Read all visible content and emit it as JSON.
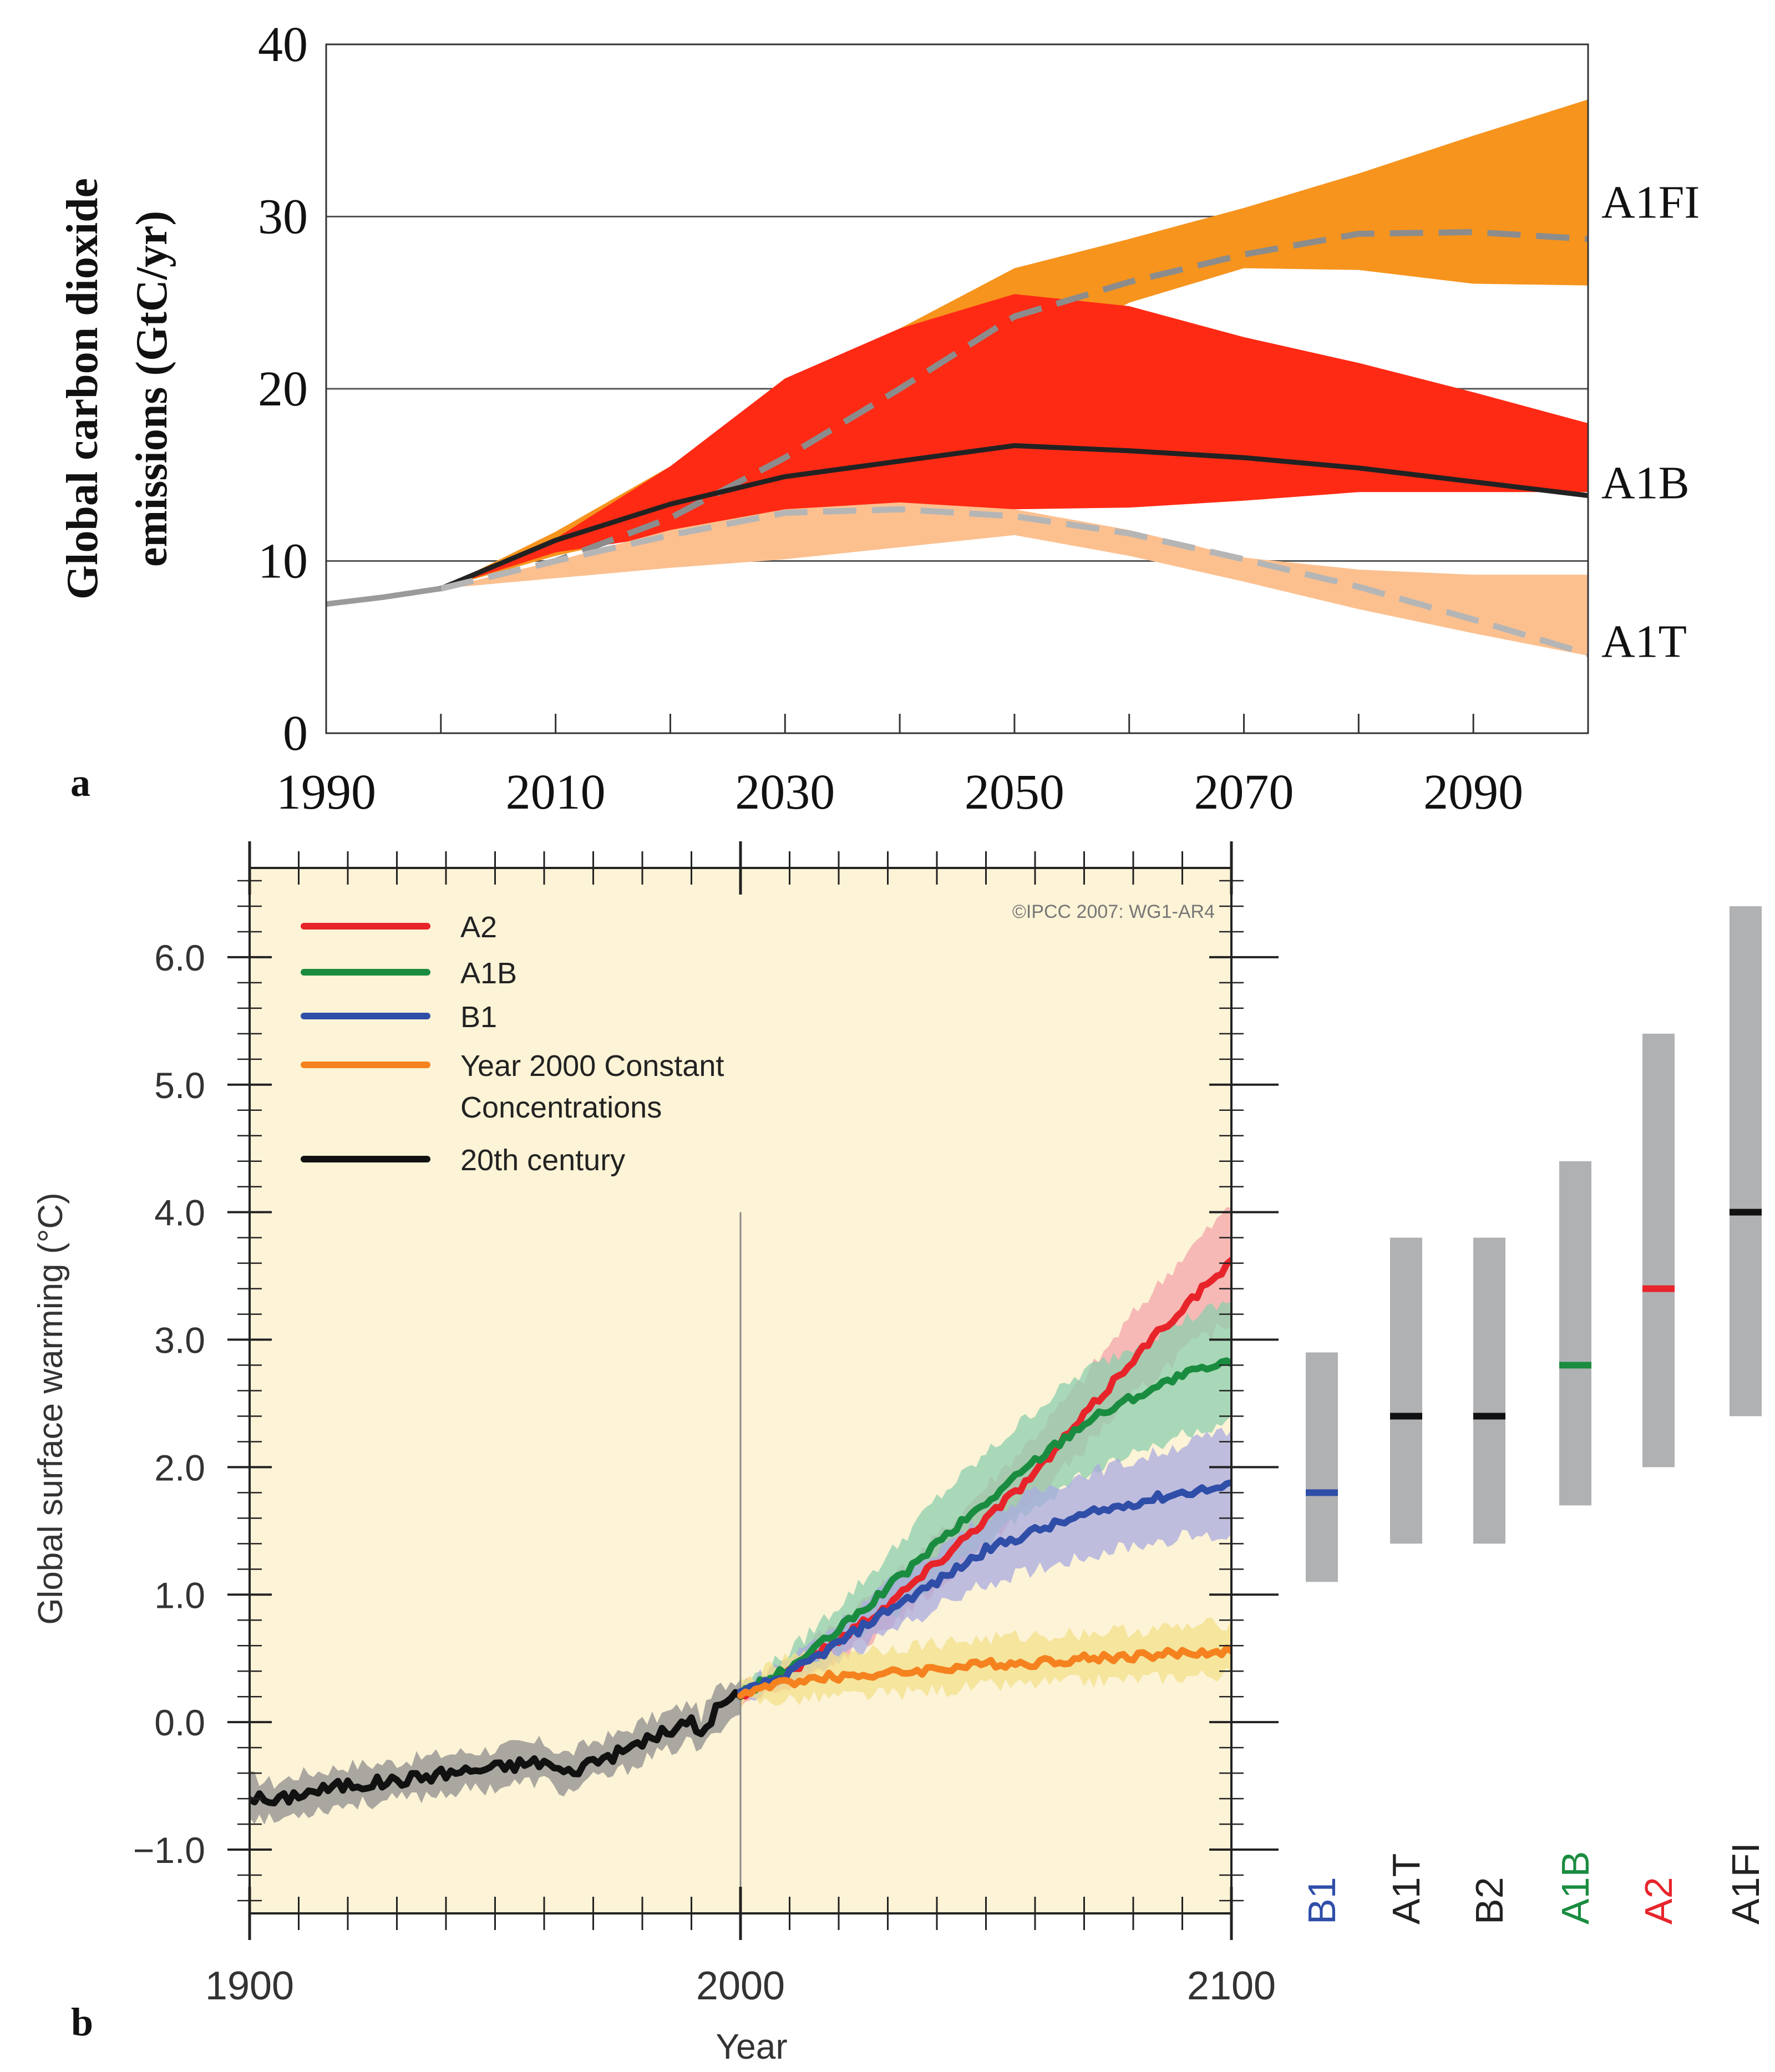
{
  "chart_data": [
    {
      "id": "panel-a",
      "panel_label": "a",
      "type": "area",
      "title": "",
      "xlabel": "",
      "ylabel_lines": [
        "Global carbon dioxide",
        "emissions (GtC/yr)"
      ],
      "xlim": [
        1990,
        2100
      ],
      "ylim": [
        0,
        40
      ],
      "x_tick_labels": [
        {
          "value": 1990,
          "label": "1990"
        },
        {
          "value": 2010,
          "label": "2010"
        },
        {
          "value": 2030,
          "label": "2030"
        },
        {
          "value": 2050,
          "label": "2050"
        },
        {
          "value": 2070,
          "label": "2070"
        },
        {
          "value": 2090,
          "label": "2090"
        }
      ],
      "x_minor_ticks": [
        2000,
        2020,
        2040,
        2060,
        2080
      ],
      "y_tick_labels": [
        {
          "value": 0,
          "label": "0"
        },
        {
          "value": 10,
          "label": "10"
        },
        {
          "value": 20,
          "label": "20"
        },
        {
          "value": 30,
          "label": "30"
        },
        {
          "value": 40,
          "label": "40"
        }
      ],
      "gridlines_y": [
        10,
        20,
        30
      ],
      "history": {
        "x": [
          1990,
          1995,
          2000
        ],
        "y": [
          7.5,
          7.9,
          8.4
        ],
        "color": "#9a9a9a"
      },
      "bands": [
        {
          "name": "A1FI",
          "color": "#f7941d",
          "x": [
            2000,
            2010,
            2020,
            2030,
            2040,
            2050,
            2060,
            2070,
            2080,
            2090,
            2100
          ],
          "upper": [
            8.4,
            11.7,
            15.5,
            19.5,
            23.5,
            27.0,
            28.7,
            30.5,
            32.5,
            34.7,
            36.8
          ],
          "lower": [
            8.4,
            10.3,
            11.8,
            13.8,
            17.0,
            21.5,
            25.0,
            27.0,
            26.9,
            26.1,
            26.0
          ]
        },
        {
          "name": "A1B",
          "color": "#ff2a14",
          "x": [
            2000,
            2010,
            2020,
            2030,
            2040,
            2050,
            2060,
            2070,
            2080,
            2090,
            2100
          ],
          "upper": [
            8.4,
            11.3,
            15.5,
            20.6,
            23.5,
            25.5,
            24.8,
            23.0,
            21.5,
            19.8,
            18.0
          ],
          "lower": [
            8.4,
            10.5,
            11.5,
            12.5,
            13.0,
            13.0,
            13.1,
            13.5,
            14.0,
            14.0,
            14.0
          ]
        },
        {
          "name": "A1T",
          "color": "#fcc08f",
          "x": [
            2000,
            2010,
            2020,
            2030,
            2040,
            2050,
            2060,
            2070,
            2080,
            2090,
            2100
          ],
          "upper": [
            8.4,
            10.0,
            11.8,
            13.0,
            13.4,
            13.0,
            11.8,
            10.2,
            9.5,
            9.2,
            9.2
          ],
          "lower": [
            8.4,
            9.0,
            9.6,
            10.1,
            10.8,
            11.5,
            10.3,
            8.8,
            7.2,
            5.8,
            4.5
          ]
        }
      ],
      "lines": [
        {
          "name": "A1FI",
          "style": "dashed",
          "color": "#8c8c8c",
          "x": [
            2000,
            2010,
            2020,
            2030,
            2040,
            2050,
            2060,
            2070,
            2080,
            2090,
            2100
          ],
          "y": [
            8.4,
            10.0,
            12.5,
            16.0,
            20.0,
            24.2,
            26.2,
            27.8,
            29.0,
            29.1,
            28.7
          ]
        },
        {
          "name": "A1B",
          "style": "solid",
          "color": "#222222",
          "x": [
            2000,
            2010,
            2020,
            2030,
            2040,
            2050,
            2060,
            2070,
            2080,
            2090,
            2100
          ],
          "y": [
            8.4,
            11.2,
            13.3,
            14.9,
            15.8,
            16.7,
            16.4,
            16.0,
            15.4,
            14.6,
            13.8
          ]
        },
        {
          "name": "A1T",
          "style": "dashed",
          "color": "#b5b5b5",
          "x": [
            2000,
            2010,
            2020,
            2030,
            2040,
            2050,
            2060,
            2070,
            2080,
            2090,
            2100
          ],
          "y": [
            8.4,
            10.0,
            11.5,
            12.8,
            13.0,
            12.6,
            11.6,
            10.1,
            8.5,
            6.6,
            4.6
          ]
        }
      ],
      "series_labels": [
        {
          "name": "A1FI",
          "label": "A1FI",
          "y": 30.9
        },
        {
          "name": "A1B",
          "label": "A1B",
          "y": 14.6
        },
        {
          "name": "A1T",
          "label": "A1T",
          "y": 5.4
        }
      ]
    },
    {
      "id": "panel-b",
      "panel_label": "b",
      "type": "line",
      "title": "",
      "xlabel": "Year",
      "ylabel": "Global surface warming (°C)",
      "copyright": "©IPCC  2007: WG1-AR4",
      "xlim": [
        1900,
        2100
      ],
      "ylim": [
        -1.5,
        6.7
      ],
      "x_tick_labels": [
        {
          "value": 1900,
          "label": "1900"
        },
        {
          "value": 2000,
          "label": "2000"
        },
        {
          "value": 2100,
          "label": "2100"
        }
      ],
      "y_tick_labels": [
        {
          "value": -1.0,
          "label": "−1.0"
        },
        {
          "value": 0.0,
          "label": "0.0"
        },
        {
          "value": 1.0,
          "label": "1.0"
        },
        {
          "value": 2.0,
          "label": "2.0"
        },
        {
          "value": 3.0,
          "label": "3.0"
        },
        {
          "value": 4.0,
          "label": "4.0"
        },
        {
          "value": 5.0,
          "label": "5.0"
        },
        {
          "value": 6.0,
          "label": "6.0"
        }
      ],
      "background_color": "#fdf3d6",
      "vertical_line": {
        "x": 2000,
        "y_top": 4.0
      },
      "legend": [
        {
          "label": "A2",
          "color": "#e8242b"
        },
        {
          "label": "A1B",
          "color": "#1a8c40"
        },
        {
          "label": "B1",
          "color": "#2f4ea8"
        },
        {
          "label": "Year 2000 Constant",
          "label_line2": "Concentrations",
          "color": "#f5821f"
        },
        {
          "label": "20th century",
          "color": "#111111"
        }
      ],
      "series": [
        {
          "name": "20th century",
          "color": "#111111",
          "band_color": "#8e8e8e",
          "x": [
            1900,
            1905,
            1910,
            1915,
            1920,
            1925,
            1930,
            1935,
            1940,
            1945,
            1950,
            1955,
            1960,
            1963,
            1965,
            1970,
            1975,
            1980,
            1985,
            1990,
            1992,
            1995,
            2000
          ],
          "y": [
            -0.58,
            -0.63,
            -0.56,
            -0.53,
            -0.49,
            -0.48,
            -0.46,
            -0.43,
            -0.4,
            -0.38,
            -0.36,
            -0.33,
            -0.31,
            -0.38,
            -0.4,
            -0.3,
            -0.25,
            -0.15,
            -0.08,
            0.0,
            -0.1,
            0.1,
            0.22
          ],
          "band": 0.15
        },
        {
          "name": "A2",
          "color": "#e8242b",
          "band_color": "#f3a5a9",
          "x": [
            2000,
            2010,
            2020,
            2030,
            2040,
            2050,
            2060,
            2070,
            2080,
            2090,
            2100
          ],
          "y": [
            0.22,
            0.4,
            0.65,
            0.92,
            1.25,
            1.6,
            1.95,
            2.4,
            2.85,
            3.25,
            3.6
          ],
          "lower": [
            0.18,
            0.3,
            0.5,
            0.75,
            1.05,
            1.4,
            1.75,
            2.15,
            2.55,
            2.9,
            3.15
          ],
          "upper": [
            0.28,
            0.5,
            0.8,
            1.1,
            1.45,
            1.85,
            2.25,
            2.7,
            3.2,
            3.65,
            4.05
          ]
        },
        {
          "name": "A1B",
          "color": "#1a8c40",
          "band_color": "#8ccfae",
          "x": [
            2000,
            2010,
            2020,
            2030,
            2040,
            2050,
            2060,
            2070,
            2080,
            2090,
            2100
          ],
          "y": [
            0.22,
            0.42,
            0.72,
            1.05,
            1.4,
            1.72,
            2.05,
            2.35,
            2.55,
            2.72,
            2.82
          ],
          "lower": [
            0.18,
            0.32,
            0.55,
            0.82,
            1.1,
            1.4,
            1.7,
            1.95,
            2.1,
            2.25,
            2.35
          ],
          "upper": [
            0.28,
            0.55,
            0.92,
            1.3,
            1.75,
            2.1,
            2.45,
            2.75,
            2.95,
            3.15,
            3.3
          ]
        },
        {
          "name": "B1",
          "color": "#2f4ea8",
          "band_color": "#a9abe0",
          "x": [
            2000,
            2010,
            2020,
            2030,
            2040,
            2050,
            2060,
            2070,
            2080,
            2090,
            2100
          ],
          "y": [
            0.22,
            0.38,
            0.62,
            0.88,
            1.1,
            1.35,
            1.5,
            1.62,
            1.72,
            1.8,
            1.85
          ],
          "lower": [
            0.18,
            0.3,
            0.48,
            0.7,
            0.9,
            1.08,
            1.2,
            1.3,
            1.38,
            1.45,
            1.45
          ],
          "upper": [
            0.28,
            0.5,
            0.78,
            1.08,
            1.35,
            1.62,
            1.8,
            1.95,
            2.05,
            2.18,
            2.28
          ]
        },
        {
          "name": "Year 2000 Constant Concentrations",
          "color": "#f5821f",
          "band_color": "#f2e08a",
          "x": [
            2000,
            2010,
            2020,
            2030,
            2040,
            2050,
            2060,
            2070,
            2080,
            2090,
            2100
          ],
          "y": [
            0.22,
            0.32,
            0.36,
            0.38,
            0.42,
            0.45,
            0.47,
            0.5,
            0.52,
            0.54,
            0.56
          ],
          "lower": [
            0.15,
            0.18,
            0.2,
            0.22,
            0.25,
            0.28,
            0.3,
            0.32,
            0.34,
            0.36,
            0.38
          ],
          "upper": [
            0.3,
            0.5,
            0.55,
            0.58,
            0.62,
            0.65,
            0.68,
            0.7,
            0.72,
            0.74,
            0.78
          ]
        }
      ],
      "ranges": [
        {
          "name": "B1",
          "label": "B1",
          "label_color": "#2f4ea8",
          "best": 1.8,
          "low": 1.1,
          "high": 2.9,
          "best_color": "#2f4ea8"
        },
        {
          "name": "A1T",
          "label": "A1T",
          "label_color": "#222222",
          "best": 2.4,
          "low": 1.4,
          "high": 3.8,
          "best_color": "#111111"
        },
        {
          "name": "B2",
          "label": "B2",
          "label_color": "#222222",
          "best": 2.4,
          "low": 1.4,
          "high": 3.8,
          "best_color": "#111111"
        },
        {
          "name": "A1B",
          "label": "A1B",
          "label_color": "#1a8c40",
          "best": 2.8,
          "low": 1.7,
          "high": 4.4,
          "best_color": "#1a8c40"
        },
        {
          "name": "A2",
          "label": "A2",
          "label_color": "#e8242b",
          "best": 3.4,
          "low": 2.0,
          "high": 5.4,
          "best_color": "#e8242b"
        },
        {
          "name": "A1FI",
          "label": "A1FI",
          "label_color": "#222222",
          "best": 4.0,
          "low": 2.4,
          "high": 6.4,
          "best_color": "#111111"
        }
      ],
      "range_bar_color": "#b0b1b3"
    }
  ]
}
